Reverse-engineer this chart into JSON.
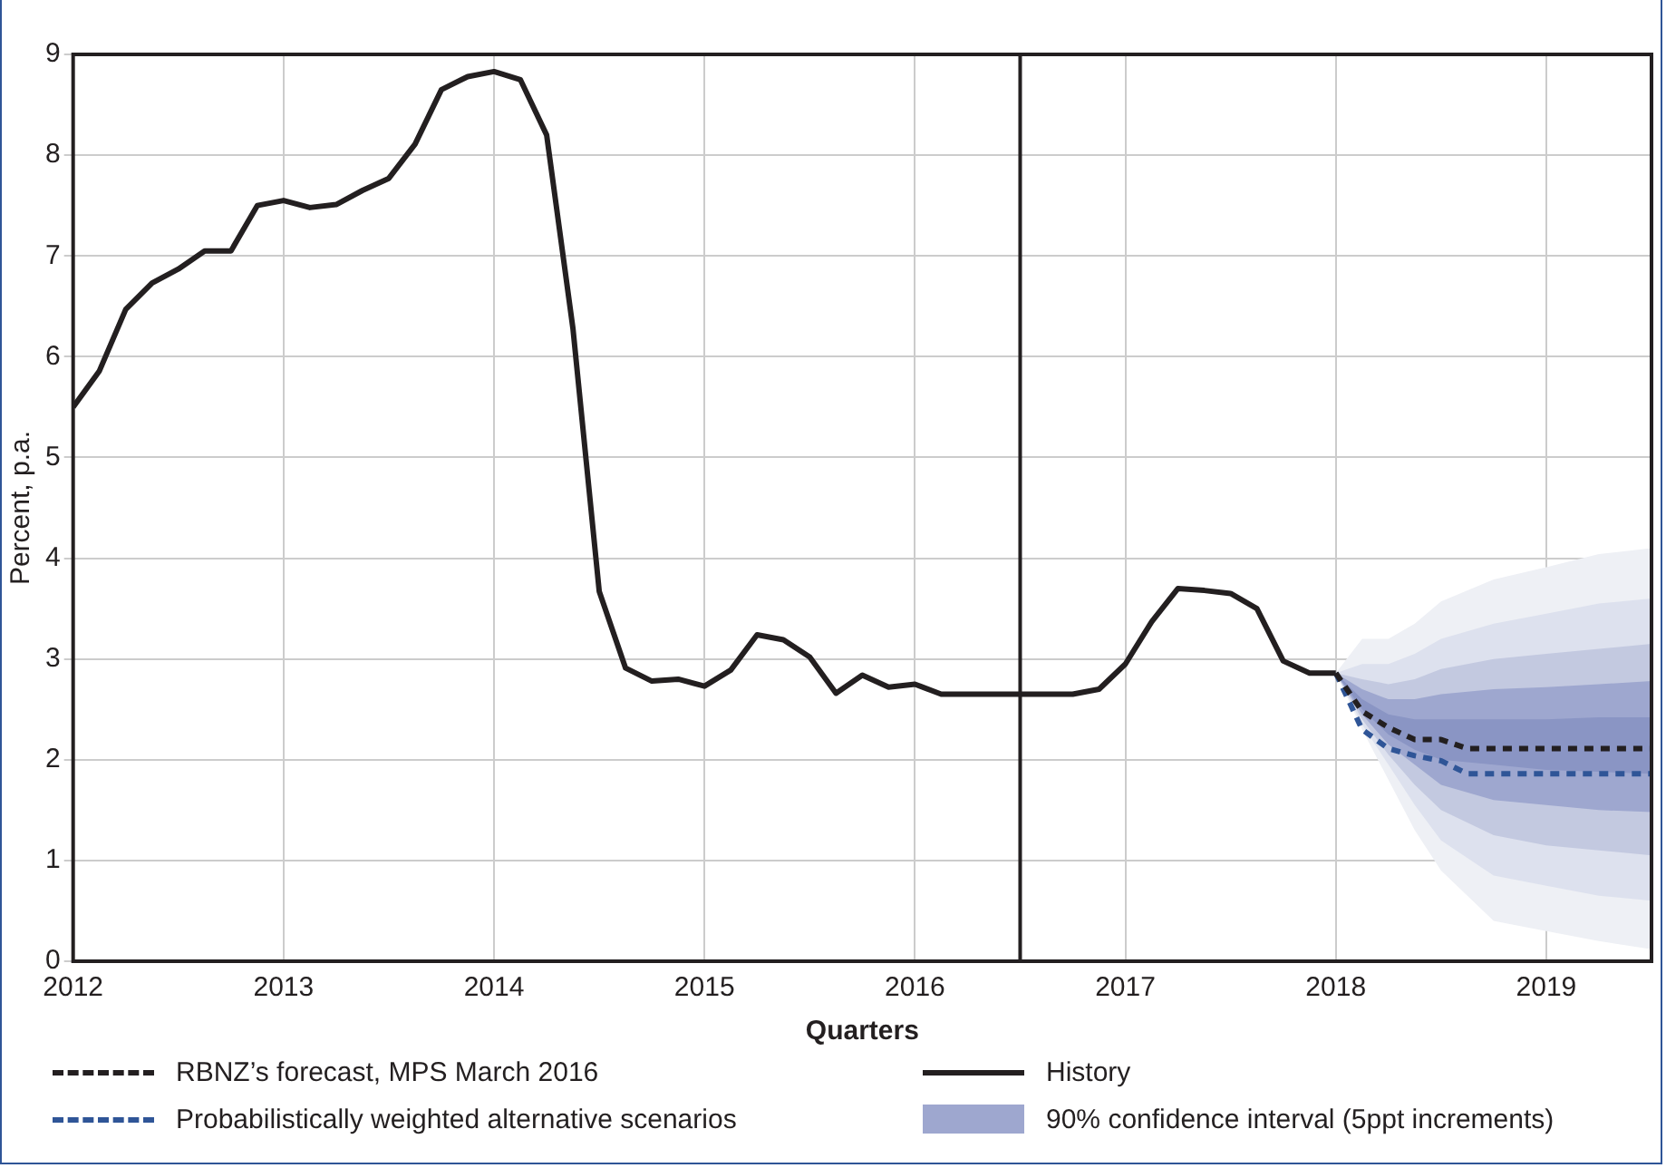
{
  "chart_data": {
    "type": "line",
    "xlabel": "Quarters",
    "ylabel": "Percent, p.a.",
    "xlim": [
      2012,
      2019.5
    ],
    "xticks": [
      2012,
      2013,
      2014,
      2015,
      2016,
      2017,
      2018,
      2019
    ],
    "ylim": [
      0,
      9
    ],
    "yticks": [
      0,
      1,
      2,
      3,
      4,
      5,
      6,
      7,
      8,
      9
    ],
    "grid": true,
    "legend": "bottom",
    "ref_lines": [
      {
        "axis": "x",
        "value": 2016.5,
        "color": "#231f20"
      }
    ],
    "series": [
      {
        "type": "area",
        "color": "#eef0f5",
        "x": [
          2018,
          2018.125,
          2018.25,
          2018.375,
          2018.5,
          2018.75,
          2019,
          2019.25,
          2019.5
        ],
        "values": [
          null,
          null,
          null,
          null,
          null,
          null,
          null,
          null,
          null
        ],
        "lower": [
          2.86,
          2.3,
          1.8,
          1.3,
          0.9,
          0.4,
          0.3,
          0.2,
          0.12
        ],
        "upper": [
          2.86,
          3.2,
          3.2,
          3.35,
          3.57,
          3.79,
          3.91,
          4.04,
          4.1
        ]
      },
      {
        "type": "area",
        "color": "#dde1ee",
        "x": [
          2018,
          2018.125,
          2018.25,
          2018.375,
          2018.5,
          2018.75,
          2019,
          2019.25,
          2019.5
        ],
        "values": [
          null,
          null,
          null,
          null,
          null,
          null,
          null,
          null,
          null
        ],
        "lower": [
          2.86,
          2.35,
          1.95,
          1.55,
          1.2,
          0.85,
          0.75,
          0.65,
          0.6
        ],
        "upper": [
          2.86,
          2.95,
          2.95,
          3.05,
          3.2,
          3.35,
          3.45,
          3.55,
          3.6
        ]
      },
      {
        "type": "area",
        "color": "#c3c9e0",
        "x": [
          2018,
          2018.125,
          2018.25,
          2018.375,
          2018.5,
          2018.75,
          2019,
          2019.25,
          2019.5
        ],
        "values": [
          null,
          null,
          null,
          null,
          null,
          null,
          null,
          null,
          null
        ],
        "lower": [
          2.86,
          2.4,
          2.05,
          1.75,
          1.5,
          1.25,
          1.15,
          1.1,
          1.05
        ],
        "upper": [
          2.86,
          2.8,
          2.75,
          2.8,
          2.9,
          3.0,
          3.05,
          3.1,
          3.15
        ]
      },
      {
        "type": "area",
        "name": "90% confidence interval (5ppt increments)",
        "color": "#9ea7cf",
        "x": [
          2018,
          2018.125,
          2018.25,
          2018.375,
          2018.5,
          2018.75,
          2019,
          2019.25,
          2019.5
        ],
        "values": [
          null,
          null,
          null,
          null,
          null,
          null,
          null,
          null,
          null
        ],
        "lower": [
          2.86,
          2.45,
          2.15,
          1.95,
          1.75,
          1.6,
          1.55,
          1.5,
          1.48
        ],
        "upper": [
          2.86,
          2.7,
          2.6,
          2.6,
          2.65,
          2.7,
          2.72,
          2.75,
          2.78
        ]
      },
      {
        "type": "area",
        "color": "#8a95c4",
        "x": [
          2018,
          2018.125,
          2018.25,
          2018.375,
          2018.5,
          2018.75,
          2019,
          2019.25,
          2019.5
        ],
        "values": [
          null,
          null,
          null,
          null,
          null,
          null,
          null,
          null,
          null
        ],
        "lower": [
          2.86,
          2.5,
          2.25,
          2.1,
          2.0,
          1.95,
          1.9,
          1.88,
          1.86
        ],
        "upper": [
          2.86,
          2.6,
          2.45,
          2.4,
          2.4,
          2.4,
          2.4,
          2.42,
          2.42
        ]
      },
      {
        "type": "line",
        "name": "History",
        "color": "#231f20",
        "line_style": "solid",
        "x": [
          2012,
          2012.125,
          2012.25,
          2012.375,
          2012.5,
          2012.625,
          2012.75,
          2012.875,
          2013,
          2013.125,
          2013.25,
          2013.375,
          2013.5,
          2013.625,
          2013.75,
          2013.875,
          2014,
          2014.125,
          2014.25,
          2014.375,
          2014.5,
          2014.625,
          2014.75,
          2014.875,
          2015,
          2015.125,
          2015.25,
          2015.375,
          2015.5,
          2015.625,
          2015.75,
          2015.875,
          2016,
          2016.125,
          2016.25,
          2016.375,
          2016.5,
          2016.625,
          2016.75,
          2016.875,
          2017,
          2017.125,
          2017.25,
          2017.375,
          2017.5,
          2017.625,
          2017.75,
          2017.875,
          2018
        ],
        "values": [
          5.5,
          5.86,
          6.47,
          6.73,
          6.87,
          7.05,
          7.05,
          7.5,
          7.55,
          7.48,
          7.51,
          7.65,
          7.77,
          8.11,
          8.65,
          8.78,
          8.83,
          8.75,
          8.2,
          6.28,
          3.67,
          2.91,
          2.78,
          2.8,
          2.73,
          2.89,
          3.24,
          3.19,
          3.02,
          2.66,
          2.84,
          2.72,
          2.75,
          2.65,
          2.65,
          2.65,
          2.65,
          2.65,
          2.65,
          2.7,
          2.95,
          3.37,
          3.7,
          3.68,
          3.65,
          3.5,
          2.98,
          2.86,
          2.86
        ]
      },
      {
        "type": "line",
        "name": "RBNZ’s forecast, MPS March 2016",
        "color": "#231f20",
        "line_style": "dashed",
        "x": [
          2018,
          2018.125,
          2018.25,
          2018.375,
          2018.5,
          2018.625,
          2018.75,
          2019,
          2019.25,
          2019.5
        ],
        "values": [
          2.86,
          2.48,
          2.32,
          2.2,
          2.2,
          2.11,
          2.11,
          2.11,
          2.11,
          2.11
        ]
      },
      {
        "type": "line",
        "name": "Probabilistically weighted alternative scenarios",
        "color": "#2f5597",
        "line_style": "dashed",
        "x": [
          2018,
          2018.125,
          2018.25,
          2018.375,
          2018.5,
          2018.625,
          2018.75,
          2019,
          2019.25,
          2019.5
        ],
        "values": [
          2.86,
          2.3,
          2.11,
          2.04,
          1.99,
          1.86,
          1.86,
          1.86,
          1.86,
          1.86
        ]
      }
    ]
  }
}
